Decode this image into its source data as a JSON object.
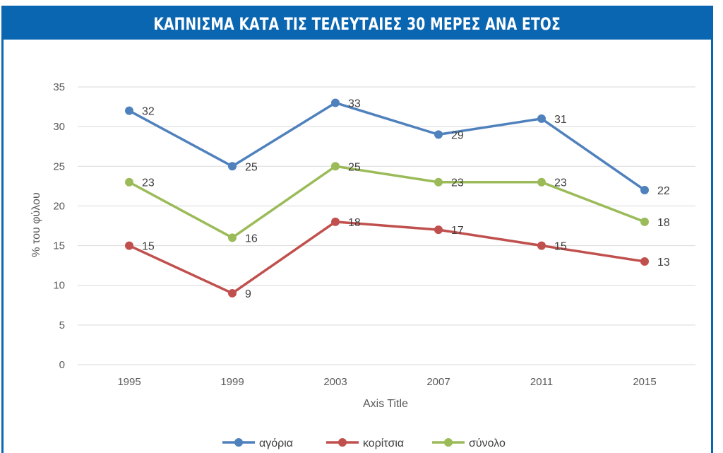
{
  "chart_data": {
    "type": "line",
    "title": "ΚΑΠΝΙΣΜΑ ΚΑΤΑ ΤΙΣ ΤΕΛΕΥΤΑΙΕΣ 30 ΜΕΡΕΣ ΑΝΑ ΕΤΟΣ",
    "xlabel": "Axis Title",
    "ylabel": "% του φύλου",
    "ylim": [
      0,
      35
    ],
    "yticks": [
      0,
      5,
      10,
      15,
      20,
      25,
      30,
      35
    ],
    "categories": [
      "1995",
      "1999",
      "2003",
      "2007",
      "2011",
      "2015"
    ],
    "grid": true,
    "legend": "bottom",
    "series": [
      {
        "name": "αγόρια",
        "color": "#4f81bd",
        "values": [
          32,
          25,
          33,
          29,
          31,
          22
        ]
      },
      {
        "name": "κορίτσια",
        "color": "#c0504d",
        "values": [
          15,
          9,
          18,
          17,
          15,
          13
        ]
      },
      {
        "name": "σύνολο",
        "color": "#9bbb59",
        "values": [
          23,
          16,
          25,
          23,
          23,
          18
        ]
      }
    ]
  }
}
